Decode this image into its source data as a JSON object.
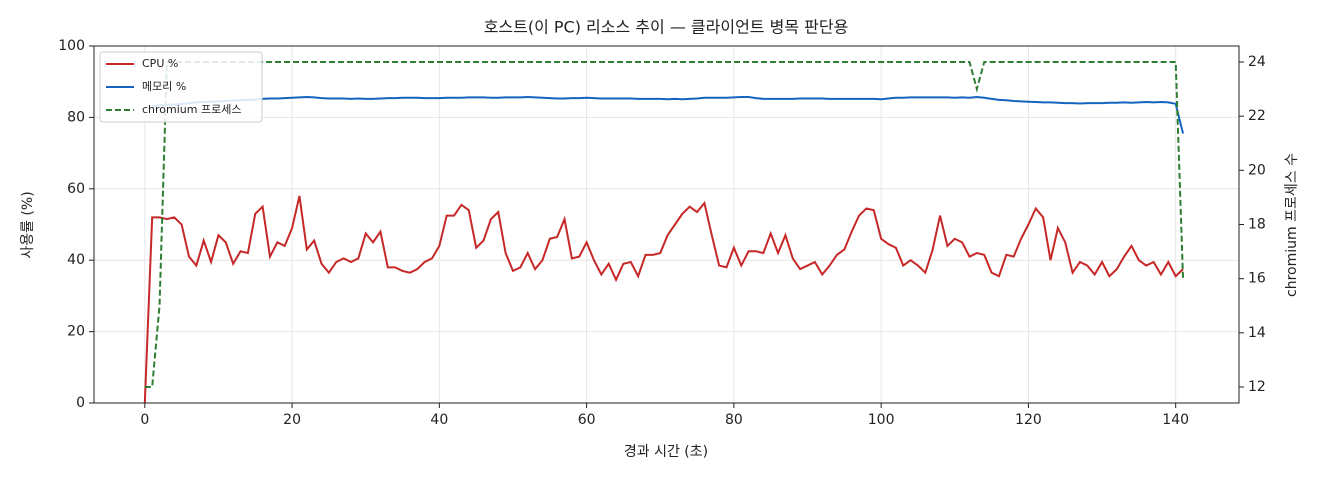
{
  "chart_data": {
    "type": "line",
    "title": "호스트(이 PC) 리소스 추이 — 클라이언트 병목 판단용",
    "x_label": "경과 시간 (초)",
    "y_label": "사용률 (%)",
    "y2_label": "chromium 프로세스 수",
    "x": [
      0,
      1,
      2,
      3,
      4,
      5,
      6,
      7,
      8,
      9,
      10,
      11,
      12,
      13,
      14,
      15,
      16,
      17,
      18,
      19,
      20,
      21,
      22,
      23,
      24,
      25,
      26,
      27,
      28,
      29,
      30,
      31,
      32,
      33,
      34,
      35,
      36,
      37,
      38,
      39,
      40,
      41,
      42,
      43,
      44,
      45,
      46,
      47,
      48,
      49,
      50,
      51,
      52,
      53,
      54,
      55,
      56,
      57,
      58,
      59,
      60,
      61,
      62,
      63,
      64,
      65,
      66,
      67,
      68,
      69,
      70,
      71,
      72,
      73,
      74,
      75,
      76,
      77,
      78,
      79,
      80,
      81,
      82,
      83,
      84,
      85,
      86,
      87,
      88,
      89,
      90,
      91,
      92,
      93,
      94,
      95,
      96,
      97,
      98,
      99,
      100,
      101,
      102,
      103,
      104,
      105,
      106,
      107,
      108,
      109,
      110,
      111,
      112,
      113,
      114,
      115,
      116,
      117,
      118,
      119,
      120,
      121,
      122,
      123,
      124,
      125,
      126,
      127,
      128,
      129,
      130,
      131,
      132,
      133,
      134,
      135,
      136,
      137,
      138,
      139,
      140,
      141
    ],
    "series": [
      {
        "name": "CPU %",
        "color": "#c62828",
        "dash": false,
        "values": [
          0,
          52,
          52,
          51.5,
          52,
          50,
          41,
          38.5,
          45.5,
          39.5,
          47,
          45,
          39,
          42.5,
          42,
          53,
          55,
          41,
          45,
          44,
          49,
          58,
          43,
          45.5,
          39,
          36.5,
          39.5,
          40.5,
          39.5,
          40.5,
          47.5,
          45,
          48,
          38,
          38,
          37,
          36.5,
          37.5,
          39.5,
          40.5,
          44,
          52.5,
          52.5,
          55.5,
          54,
          43.5,
          45.5,
          51.5,
          53.5,
          42,
          37,
          38,
          42,
          37.5,
          40,
          46,
          46.5,
          51.5,
          40.5,
          41,
          45,
          40,
          36,
          39,
          34.5,
          39,
          39.5,
          35.5,
          41.5,
          41.5,
          42,
          47,
          50,
          53,
          55,
          53.5,
          56,
          47,
          38.5,
          38,
          43.5,
          38.5,
          42.5,
          42.5,
          42,
          47.5,
          42,
          47,
          40.5,
          37.5,
          38.5,
          39.5,
          36,
          38.5,
          41.5,
          43,
          48,
          52.5,
          54.5,
          54,
          46,
          44.5,
          43.5,
          38.5,
          40,
          38.5,
          36.5,
          43,
          52.5,
          44,
          46,
          45,
          41,
          42,
          41.5,
          36.5,
          35.5,
          41.5,
          41,
          46,
          50,
          54.5,
          52,
          40,
          49,
          45,
          36.5,
          39.5,
          38.5,
          36,
          39.5,
          35.5,
          37.5,
          41,
          44,
          40,
          38.5,
          39.5,
          36,
          39.5,
          35.5,
          37.5
        ]
      },
      {
        "name": "메모리 %",
        "color": "#1565c0",
        "dash": false,
        "values": [
          null,
          83.2,
          83.4,
          83.5,
          83.6,
          83.8,
          84,
          84.2,
          84.3,
          84.4,
          84.5,
          84.6,
          84.7,
          84.8,
          84.9,
          85,
          85.2,
          85.3,
          85.3,
          85.4,
          85.5,
          85.6,
          85.7,
          85.6,
          85.4,
          85.3,
          85.3,
          85.3,
          85.2,
          85.3,
          85.2,
          85.2,
          85.3,
          85.4,
          85.4,
          85.5,
          85.5,
          85.5,
          85.4,
          85.4,
          85.4,
          85.5,
          85.5,
          85.5,
          85.6,
          85.6,
          85.6,
          85.5,
          85.5,
          85.6,
          85.6,
          85.6,
          85.7,
          85.6,
          85.5,
          85.4,
          85.3,
          85.3,
          85.4,
          85.4,
          85.5,
          85.4,
          85.3,
          85.3,
          85.3,
          85.3,
          85.3,
          85.2,
          85.2,
          85.2,
          85.2,
          85.1,
          85.2,
          85.1,
          85.2,
          85.3,
          85.5,
          85.5,
          85.5,
          85.5,
          85.6,
          85.7,
          85.7,
          85.4,
          85.2,
          85.2,
          85.2,
          85.2,
          85.2,
          85.3,
          85.3,
          85.3,
          85.3,
          85.2,
          85.2,
          85.2,
          85.2,
          85.2,
          85.2,
          85.2,
          85.1,
          85.3,
          85.5,
          85.5,
          85.6,
          85.6,
          85.6,
          85.6,
          85.6,
          85.6,
          85.5,
          85.6,
          85.5,
          85.7,
          85.5,
          85.2,
          84.9,
          84.8,
          84.6,
          84.5,
          84.4,
          84.3,
          84.2,
          84.2,
          84.1,
          84,
          84,
          83.9,
          84,
          84,
          84,
          84.1,
          84.1,
          84.2,
          84.1,
          84.2,
          84.3,
          84.2,
          84.3,
          84.2,
          83.8,
          75.5
        ]
      },
      {
        "name": "chromium 프로세스",
        "color": "#2e7d32",
        "dash": true,
        "axis": "y2",
        "values": [
          12,
          12,
          15,
          24,
          24,
          24,
          24,
          24,
          24,
          24,
          24,
          24,
          24,
          24,
          24,
          24,
          24,
          24,
          24,
          24,
          24,
          24,
          24,
          24,
          24,
          24,
          24,
          24,
          24,
          24,
          24,
          24,
          24,
          24,
          24,
          24,
          24,
          24,
          24,
          24,
          24,
          24,
          24,
          24,
          24,
          24,
          24,
          24,
          24,
          24,
          24,
          24,
          24,
          24,
          24,
          24,
          24,
          24,
          24,
          24,
          24,
          24,
          24,
          24,
          24,
          24,
          24,
          24,
          24,
          24,
          24,
          24,
          24,
          24,
          24,
          24,
          24,
          24,
          24,
          24,
          24,
          24,
          24,
          24,
          24,
          24,
          24,
          24,
          24,
          24,
          24,
          24,
          24,
          24,
          24,
          24,
          24,
          24,
          24,
          24,
          24,
          24,
          24,
          24,
          24,
          24,
          24,
          24,
          24,
          24,
          24,
          24,
          24,
          23,
          24,
          24,
          24,
          24,
          24,
          24,
          24,
          24,
          24,
          24,
          24,
          24,
          24,
          24,
          24,
          24,
          24,
          24,
          24,
          24,
          24,
          24,
          24,
          24,
          24,
          24,
          24,
          16
        ]
      }
    ],
    "xlim": [
      -6.9,
      148.6
    ],
    "xticks": [
      0,
      20,
      40,
      60,
      80,
      100,
      120,
      140
    ],
    "ylim": [
      0,
      100
    ],
    "yticks": [
      0,
      20,
      40,
      60,
      80,
      100
    ],
    "y2lim": [
      11.41,
      24.59
    ],
    "y2ticks": [
      12,
      14,
      16,
      18,
      20,
      22,
      24
    ],
    "grid": true,
    "legend": "upper-left"
  }
}
